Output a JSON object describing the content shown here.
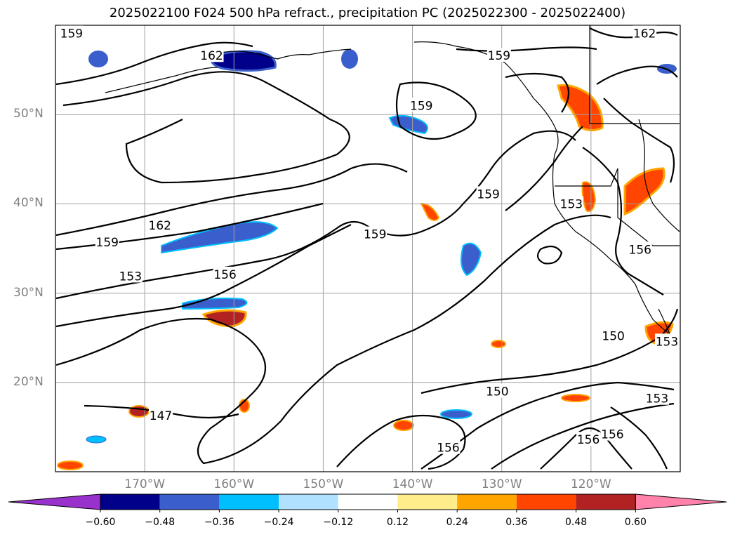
{
  "title": "2025022100 F024 500 hPa refract., precipitation PC (2025022300 - 2025022400)",
  "map": {
    "lon_range": [
      -180,
      -110
    ],
    "lat_range": [
      10,
      60
    ],
    "lat_labels": [
      {
        "lat": 50,
        "label": "50°N"
      },
      {
        "lat": 40,
        "label": "40°N"
      },
      {
        "lat": 30,
        "label": "30°N"
      },
      {
        "lat": 20,
        "label": "20°N"
      }
    ],
    "lon_labels": [
      {
        "lon": -170,
        "label": "170°W"
      },
      {
        "lon": -160,
        "label": "160°W"
      },
      {
        "lon": -150,
        "label": "150°W"
      },
      {
        "lon": -140,
        "label": "140°W"
      },
      {
        "lon": -130,
        "label": "130°W"
      },
      {
        "lon": -120,
        "label": "120°W"
      }
    ],
    "contour_labels": [
      {
        "label": "159",
        "lon": -178.2,
        "lat": 59.1
      },
      {
        "label": "162",
        "lon": -162.5,
        "lat": 56.6
      },
      {
        "label": "159",
        "lon": -130.3,
        "lat": 56.6
      },
      {
        "label": "162",
        "lon": -114.0,
        "lat": 59.1
      },
      {
        "label": "159",
        "lon": -139.0,
        "lat": 51.0
      },
      {
        "label": "159",
        "lon": -131.5,
        "lat": 41.1
      },
      {
        "label": "162",
        "lon": -168.3,
        "lat": 37.6
      },
      {
        "label": "159",
        "lon": -174.2,
        "lat": 35.7
      },
      {
        "label": "159",
        "lon": -144.2,
        "lat": 36.6
      },
      {
        "label": "153",
        "lon": -122.2,
        "lat": 40.0
      },
      {
        "label": "156",
        "lon": -114.5,
        "lat": 34.9
      },
      {
        "label": "153",
        "lon": -171.6,
        "lat": 31.9
      },
      {
        "label": "156",
        "lon": -161.0,
        "lat": 32.1
      },
      {
        "label": "150",
        "lon": -117.5,
        "lat": 25.2
      },
      {
        "label": "150",
        "lon": -130.5,
        "lat": 19.0
      },
      {
        "label": "147",
        "lon": -168.2,
        "lat": 16.3
      },
      {
        "label": "153",
        "lon": -112.6,
        "lat": 18.2
      },
      {
        "label": "156",
        "lon": -117.6,
        "lat": 14.2
      },
      {
        "label": "156",
        "lon": -120.3,
        "lat": 13.6
      },
      {
        "label": "156",
        "lon": -136.0,
        "lat": 12.7
      },
      {
        "label": "153",
        "lon": -111.5,
        "lat": 24.6
      }
    ]
  },
  "colorbar": {
    "ticks": [
      "−0.60",
      "−0.48",
      "−0.36",
      "−0.24",
      "−0.12",
      "0.12",
      "0.24",
      "0.36",
      "0.48",
      "0.60"
    ],
    "colors": [
      "#9932cc",
      "#00008b",
      "#3a5fcd",
      "#00bfff",
      "#b0e2ff",
      "#ffffff",
      "#ffec8b",
      "#ffa500",
      "#ff4500",
      "#b22222",
      "#ff82ab"
    ]
  }
}
